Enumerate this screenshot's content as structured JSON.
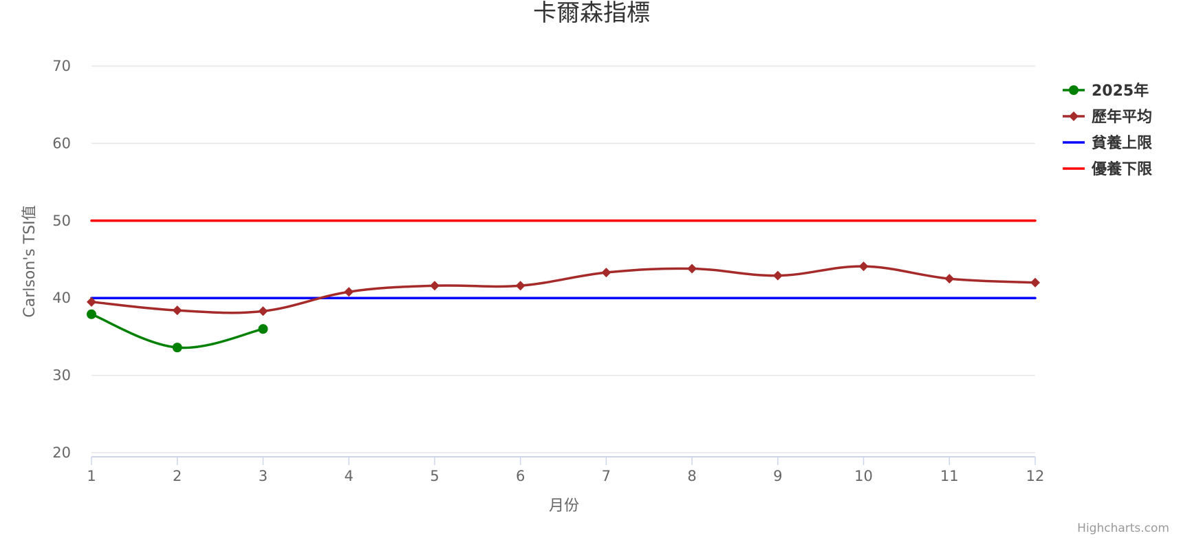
{
  "chart_data": {
    "type": "line",
    "title": "卡爾森指標",
    "xlabel": "月份",
    "ylabel": "Carlson's TSI值",
    "x": [
      1,
      2,
      3,
      4,
      5,
      6,
      7,
      8,
      9,
      10,
      11,
      12
    ],
    "ylim": [
      20,
      70
    ],
    "yticks": [
      20,
      30,
      40,
      50,
      60,
      70
    ],
    "grid": true,
    "legend_position": "right",
    "series": [
      {
        "name": "2025年",
        "color": "#008000",
        "marker": "circle",
        "smooth": true,
        "x": [
          1,
          2,
          3
        ],
        "values": [
          37.9,
          33.6,
          36.0
        ]
      },
      {
        "name": "歷年平均",
        "color": "#A52A2A",
        "marker": "diamond",
        "smooth": true,
        "x": [
          1,
          2,
          3,
          4,
          5,
          6,
          7,
          8,
          9,
          10,
          11,
          12
        ],
        "values": [
          39.5,
          38.4,
          38.3,
          40.8,
          41.6,
          41.6,
          43.3,
          43.8,
          42.9,
          44.1,
          42.5,
          42.0
        ]
      },
      {
        "name": "貧養上限",
        "color": "#0000FF",
        "marker": "none",
        "smooth": false,
        "x": [
          1,
          12
        ],
        "values": [
          40,
          40
        ]
      },
      {
        "name": "優養下限",
        "color": "#FF0000",
        "marker": "none",
        "smooth": false,
        "x": [
          1,
          12
        ],
        "values": [
          50,
          50
        ]
      }
    ],
    "credits": "Highcharts.com"
  }
}
